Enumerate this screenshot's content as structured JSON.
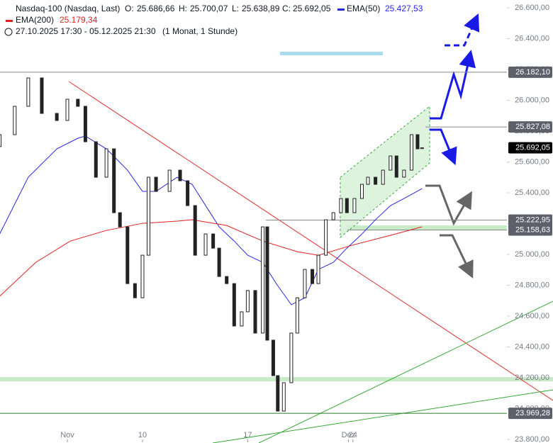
{
  "header": {
    "symbol": "Nasdaq-100 (Nasdaq, Last)",
    "o_label": "O:",
    "open": {
      "value": 25686.66,
      "label": "25.686,66"
    },
    "h_label": "H:",
    "high": {
      "value": 25700.07,
      "label": "25.700,07"
    },
    "l_label": "L:",
    "low": {
      "value": 25638.89,
      "label": "25.638,89"
    },
    "c_label": "C:",
    "close": {
      "value": 25692.05,
      "label": "25.692,05"
    },
    "range": "27.10.2025 17:30 - 05.12.2025 21:30",
    "interval": "(1 Monat, 1 Stunde)"
  },
  "chart_data": {
    "type": "candlestick",
    "x": [
      0.5,
      1.5,
      2.4,
      3.3,
      4.3,
      5.0,
      5.7,
      6.2,
      6.9,
      7.6,
      8.1,
      8.5,
      9.0,
      9.5,
      10.0,
      10.4,
      10.9,
      11.8,
      12.5,
      13.0,
      13.5,
      14.2,
      14.7,
      15.1,
      15.6,
      16.1,
      16.6,
      17.0,
      17.5,
      18.0,
      18.3,
      18.7,
      19.0,
      19.4,
      19.9,
      20.3,
      20.8,
      21.3,
      21.7,
      22.2,
      22.7,
      23.2,
      23.6,
      24.1,
      24.6,
      25.0,
      25.5,
      26.0,
      26.5,
      26.9,
      27.4,
      27.9,
      28.3,
      28.6
    ],
    "open": [
      25700,
      25777,
      25961,
      26145,
      25915,
      25869,
      26007,
      25961,
      25731,
      25501,
      25685,
      25271,
      25179,
      24811,
      24719,
      24995,
      25501,
      25409,
      25547,
      25478,
      25317,
      24995,
      25133,
      25041,
      24857,
      24811,
      24536,
      24628,
      24766,
      24490,
      25179,
      24444,
      24214,
      23984,
      24168,
      24490,
      24719,
      24903,
      24811,
      24995,
      25225,
      25271,
      25363,
      25271,
      25363,
      25455,
      25501,
      25455,
      25547,
      25639,
      25501,
      25547,
      25777,
      25686.66
    ],
    "close": [
      25777,
      25961,
      26145,
      25915,
      25869,
      26007,
      25961,
      25731,
      25501,
      25685,
      25271,
      25179,
      24811,
      24719,
      24995,
      25501,
      25409,
      25547,
      25478,
      25317,
      24995,
      25133,
      25041,
      24857,
      24811,
      24536,
      24628,
      24766,
      24490,
      25179,
      24444,
      24214,
      23984,
      24168,
      24490,
      24719,
      24903,
      24811,
      24995,
      25225,
      25271,
      25363,
      25271,
      25363,
      25455,
      25501,
      25455,
      25547,
      25639,
      25501,
      25547,
      25777,
      25685,
      25692.05
    ],
    "series": [
      {
        "name": "EMA(50)",
        "color": "#2727e6",
        "value_label": "25.427,53",
        "x": [
          0.5,
          2.4,
          4.3,
          5.7,
          6.2,
          7.6,
          9.0,
          10.0,
          10.9,
          12.3,
          13.3,
          14.2,
          15.1,
          16.1,
          17.0,
          18.0,
          18.9,
          19.9,
          20.8,
          21.7,
          22.7,
          23.6,
          24.6,
          25.5,
          26.5,
          27.4,
          28.6
        ],
        "values": [
          25133,
          25501,
          25685,
          25754,
          25768,
          25685,
          25547,
          25409,
          25409,
          25501,
          25455,
          25317,
          25179,
          25087,
          24995,
          24949,
          24811,
          24674,
          24719,
          24903,
          24949,
          25041,
          25133,
          25225,
          25317,
          25363,
          25427.53
        ]
      },
      {
        "name": "EMA(200)",
        "color": "#e02020",
        "value_label": "25.179,34",
        "x": [
          0.5,
          2.9,
          5.2,
          7.6,
          10.0,
          12.3,
          13.3,
          15.6,
          18.0,
          20.3,
          21.7,
          24.1,
          26.5,
          28.6
        ],
        "values": [
          24729,
          24949,
          25087,
          25156,
          25202,
          25216,
          25225,
          25188,
          25087,
          25018,
          24995,
          25064,
          25124,
          25179.34
        ]
      }
    ],
    "levels": [
      {
        "value": 26182.1,
        "label": "26.182,10",
        "color": "#5d606b"
      },
      {
        "value": 25827.08,
        "label": "25.827,08",
        "color": "#5d606b"
      },
      {
        "value": 25692.05,
        "label": "25.692,05",
        "color": "#000000"
      },
      {
        "value": 25222.95,
        "label": "25.222,95",
        "color": "#5d606b"
      },
      {
        "value": 25158.63,
        "label": "25.158,63",
        "color": "#5d606b"
      },
      {
        "value": 23969.28,
        "label": "23.969,28",
        "color": "#5d606b"
      }
    ],
    "xlim": [
      0.5,
      34.2
    ],
    "xticks": [
      {
        "value": 5,
        "label": "Nov"
      },
      10,
      17,
      24,
      {
        "value": 23.7,
        "label": "Dez"
      }
    ],
    "ylim": [
      23800,
      26600
    ],
    "yticks": [
      {
        "value": 26600,
        "label": "26.600,00"
      },
      {
        "value": 26400,
        "label": "26.400,00"
      },
      {
        "value": 26200,
        "label": "26.200,00"
      },
      {
        "value": 26000,
        "label": "26.000,00"
      },
      {
        "value": 25800,
        "label": "25.800,00"
      },
      {
        "value": 25600,
        "label": "25.600,00"
      },
      {
        "value": 25400,
        "label": "25.400,00"
      },
      {
        "value": 25200,
        "label": "25.200,00"
      },
      {
        "value": 25000,
        "label": "25.000,00"
      },
      {
        "value": 24800,
        "label": "24.800,00"
      },
      {
        "value": 24600,
        "label": "24.600,00"
      },
      {
        "value": 24400,
        "label": "24.400,00"
      },
      {
        "value": 24200,
        "label": "24.200,00"
      },
      {
        "value": 24000,
        "label": "24.000,00"
      },
      {
        "value": 23800,
        "label": "23.800,00"
      }
    ]
  }
}
